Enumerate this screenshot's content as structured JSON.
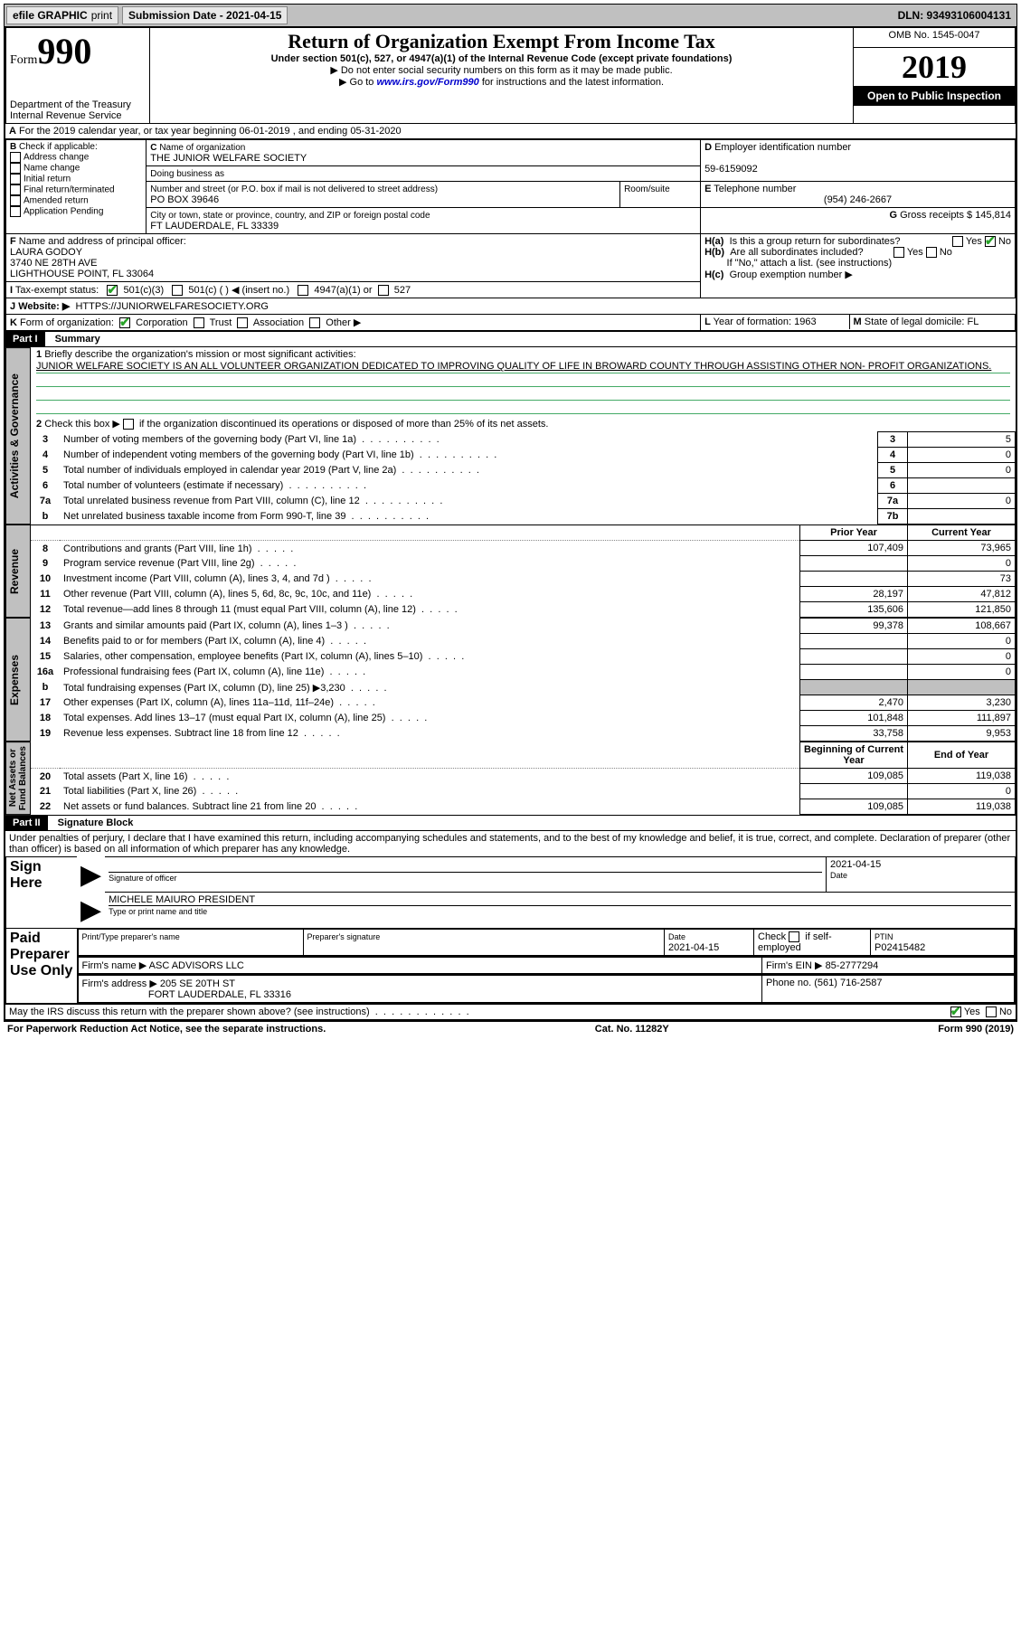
{
  "topbar": {
    "efile": "efile GRAPHIC",
    "print": "print",
    "submission_label": "Submission Date - 2021-04-15",
    "dln": "DLN: 93493106004131"
  },
  "header": {
    "form_word": "Form",
    "form_num": "990",
    "dept": "Department of the Treasury",
    "irs": "Internal Revenue Service",
    "title": "Return of Organization Exempt From Income Tax",
    "sub1": "Under section 501(c), 527, or 4947(a)(1) of the Internal Revenue Code (except private foundations)",
    "sub2": "Do not enter social security numbers on this form as it may be made public.",
    "sub3_pre": "Go to ",
    "sub3_link": "www.irs.gov/Form990",
    "sub3_post": " for instructions and the latest information.",
    "omb": "OMB No. 1545-0047",
    "year": "2019",
    "inspect": "Open to Public Inspection"
  },
  "A": {
    "line": "For the 2019 calendar year, or tax year beginning 06-01-2019   , and ending 05-31-2020"
  },
  "B": {
    "label": "Check if applicable:",
    "opts": [
      "Address change",
      "Name change",
      "Initial return",
      "Final return/terminated",
      "Amended return",
      "Application Pending"
    ]
  },
  "C": {
    "name_label": "Name of organization",
    "name": "THE JUNIOR WELFARE SOCIETY",
    "dba_label": "Doing business as",
    "addr_label": "Number and street (or P.O. box if mail is not delivered to street address)",
    "room_label": "Room/suite",
    "addr": "PO BOX 39646",
    "city_label": "City or town, state or province, country, and ZIP or foreign postal code",
    "city": "FT LAUDERDALE, FL  33339"
  },
  "D": {
    "label": "Employer identification number",
    "val": "59-6159092"
  },
  "E": {
    "label": "Telephone number",
    "val": "(954) 246-2667"
  },
  "G": {
    "label": "Gross receipts $",
    "val": "145,814"
  },
  "F": {
    "label": "Name and address of principal officer:",
    "name": "LAURA GODOY",
    "addr1": "3740 NE 28TH AVE",
    "addr2": "LIGHTHOUSE POINT, FL  33064"
  },
  "H": {
    "a": "Is this a group return for subordinates?",
    "a_no": true,
    "b": "Are all subordinates included?",
    "b_note": "If \"No,\" attach a list. (see instructions)",
    "c": "Group exemption number ▶"
  },
  "I": {
    "label": "Tax-exempt status:",
    "c3": "501(c)(3)",
    "c": "501(c) (   ) ◀ (insert no.)",
    "a1": "4947(a)(1) or",
    "s527": "527"
  },
  "J": {
    "label": "Website: ▶",
    "val": "HTTPS://JUNIORWELFARESOCIETY.ORG"
  },
  "K": {
    "label": "Form of organization:",
    "corp": "Corporation",
    "trust": "Trust",
    "assoc": "Association",
    "other": "Other ▶"
  },
  "L": {
    "label": "Year of formation:",
    "val": "1963"
  },
  "M": {
    "label": "State of legal domicile:",
    "val": "FL"
  },
  "part1": {
    "header": "Part I",
    "title": "Summary",
    "line1_label": "Briefly describe the organization's mission or most significant activities:",
    "line1_text": "JUNIOR WELFARE SOCIETY IS AN ALL VOLUNTEER ORGANIZATION DEDICATED TO IMPROVING QUALITY OF LIFE IN BROWARD COUNTY THROUGH ASSISTING OTHER NON- PROFIT ORGANIZATIONS.",
    "line2": "Check this box ▶       if the organization discontinued its operations or disposed of more than 25% of its net assets.",
    "rows_gov": [
      {
        "n": "3",
        "t": "Number of voting members of the governing body (Part VI, line 1a)",
        "box": "3",
        "v": "5"
      },
      {
        "n": "4",
        "t": "Number of independent voting members of the governing body (Part VI, line 1b)",
        "box": "4",
        "v": "0"
      },
      {
        "n": "5",
        "t": "Total number of individuals employed in calendar year 2019 (Part V, line 2a)",
        "box": "5",
        "v": "0"
      },
      {
        "n": "6",
        "t": "Total number of volunteers (estimate if necessary)",
        "box": "6",
        "v": ""
      },
      {
        "n": "7a",
        "t": "Total unrelated business revenue from Part VIII, column (C), line 12",
        "box": "7a",
        "v": "0"
      },
      {
        "n": "b",
        "t": "Net unrelated business taxable income from Form 990-T, line 39",
        "box": "7b",
        "v": ""
      }
    ],
    "col_prior": "Prior Year",
    "col_current": "Current Year",
    "rows_rev": [
      {
        "n": "8",
        "t": "Contributions and grants (Part VIII, line 1h)",
        "p": "107,409",
        "c": "73,965"
      },
      {
        "n": "9",
        "t": "Program service revenue (Part VIII, line 2g)",
        "p": "",
        "c": "0"
      },
      {
        "n": "10",
        "t": "Investment income (Part VIII, column (A), lines 3, 4, and 7d )",
        "p": "",
        "c": "73"
      },
      {
        "n": "11",
        "t": "Other revenue (Part VIII, column (A), lines 5, 6d, 8c, 9c, 10c, and 11e)",
        "p": "28,197",
        "c": "47,812"
      },
      {
        "n": "12",
        "t": "Total revenue—add lines 8 through 11 (must equal Part VIII, column (A), line 12)",
        "p": "135,606",
        "c": "121,850"
      }
    ],
    "rows_exp": [
      {
        "n": "13",
        "t": "Grants and similar amounts paid (Part IX, column (A), lines 1–3 )",
        "p": "99,378",
        "c": "108,667"
      },
      {
        "n": "14",
        "t": "Benefits paid to or for members (Part IX, column (A), line 4)",
        "p": "",
        "c": "0"
      },
      {
        "n": "15",
        "t": "Salaries, other compensation, employee benefits (Part IX, column (A), lines 5–10)",
        "p": "",
        "c": "0"
      },
      {
        "n": "16a",
        "t": "Professional fundraising fees (Part IX, column (A), line 11e)",
        "p": "",
        "c": "0"
      },
      {
        "n": "b",
        "t": "Total fundraising expenses (Part IX, column (D), line 25) ▶3,230",
        "p": "shaded",
        "c": "shaded"
      },
      {
        "n": "17",
        "t": "Other expenses (Part IX, column (A), lines 11a–11d, 11f–24e)",
        "p": "2,470",
        "c": "3,230"
      },
      {
        "n": "18",
        "t": "Total expenses. Add lines 13–17 (must equal Part IX, column (A), line 25)",
        "p": "101,848",
        "c": "111,897"
      },
      {
        "n": "19",
        "t": "Revenue less expenses. Subtract line 18 from line 12",
        "p": "33,758",
        "c": "9,953"
      }
    ],
    "col_begin": "Beginning of Current Year",
    "col_end": "End of Year",
    "rows_net": [
      {
        "n": "20",
        "t": "Total assets (Part X, line 16)",
        "p": "109,085",
        "c": "119,038"
      },
      {
        "n": "21",
        "t": "Total liabilities (Part X, line 26)",
        "p": "",
        "c": "0"
      },
      {
        "n": "22",
        "t": "Net assets or fund balances. Subtract line 21 from line 20",
        "p": "109,085",
        "c": "119,038"
      }
    ]
  },
  "part2": {
    "header": "Part II",
    "title": "Signature Block",
    "perjury": "Under penalties of perjury, I declare that I have examined this return, including accompanying schedules and statements, and to the best of my knowledge and belief, it is true, correct, and complete. Declaration of preparer (other than officer) is based on all information of which preparer has any knowledge.",
    "sign_here": "Sign Here",
    "sig_officer": "Signature of officer",
    "date_label": "Date",
    "date_val": "2021-04-15",
    "name_title": "MICHELE MAIURO  PRESIDENT",
    "name_title_label": "Type or print name and title",
    "paid": "Paid Preparer Use Only",
    "prep_name_label": "Print/Type preparer's name",
    "prep_sig_label": "Preparer's signature",
    "prep_date_label": "Date",
    "prep_date": "2021-04-15",
    "check_self": "Check        if self-employed",
    "ptin_label": "PTIN",
    "ptin": "P02415482",
    "firm_name_label": "Firm's name    ▶",
    "firm_name": "ASC ADVISORS LLC",
    "firm_ein_label": "Firm's EIN ▶",
    "firm_ein": "85-2777294",
    "firm_addr_label": "Firm's address ▶",
    "firm_addr1": "205 SE 20TH ST",
    "firm_addr2": "FORT LAUDERDALE, FL  33316",
    "phone_label": "Phone no.",
    "phone": "(561) 716-2587",
    "discuss": "May the IRS discuss this return with the preparer shown above? (see instructions)",
    "yes": "Yes",
    "no": "No"
  },
  "footer": {
    "left": "For Paperwork Reduction Act Notice, see the separate instructions.",
    "mid": "Cat. No. 11282Y",
    "right": "Form 990 (2019)"
  }
}
